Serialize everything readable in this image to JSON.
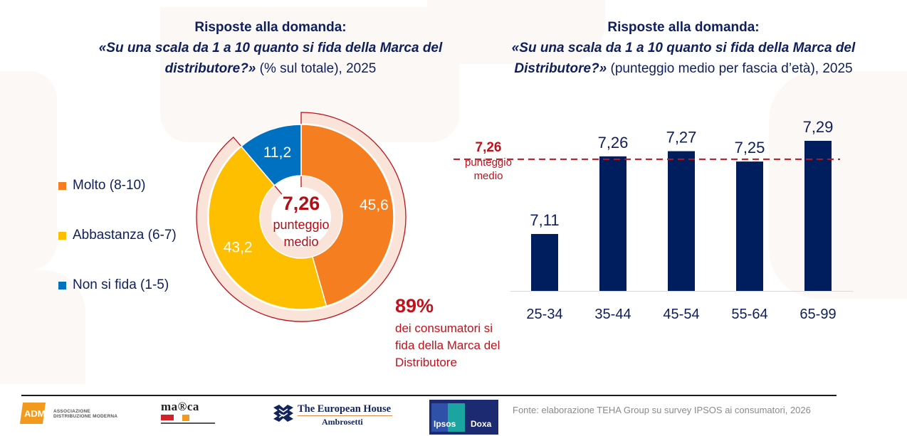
{
  "left_panel": {
    "title_line1": "Risposte alla domanda:",
    "title_question": "«Su una scala da 1 a 10 quanto si fida della Marca del distributore?»",
    "title_rest": " (% sul totale), 2025",
    "center_value": "7,26",
    "center_label_1": "punteggio",
    "center_label_2": "medio",
    "callout_value": "89%",
    "callout_text": "dei consumatori si fida della Marca del Distributore"
  },
  "right_panel": {
    "title_line1": "Risposte alla domanda:",
    "title_question": "«Su una scala da 1 a 10 quanto si fida della Marca del Distributore?»",
    "title_rest": " (punteggio medio per fascia d’età), 2025",
    "avg_value": "7,26",
    "avg_label_1": "punteggio",
    "avg_label_2": "medio"
  },
  "footer": {
    "source": "Fonte: elaborazione TEHA Group su survey IPSOS ai consumatori, 2026",
    "logos": {
      "adm": "ADM",
      "adm_sub_1": "ASSOCIAZIONE",
      "adm_sub_2": "DISTRIBUZIONE MODERNA",
      "marca": "ma®ca",
      "teha_1": "The European House",
      "teha_2": "Ambrosetti",
      "ipsos": "Ipsos",
      "doxa": "Doxa"
    }
  },
  "chart_data": [
    {
      "type": "pie",
      "variant": "donut",
      "title": "Risposte alla domanda: «Su una scala da 1 a 10 quanto si fida della Marca del distributore?» (% sul totale), 2025",
      "categories": [
        "Molto (8-10)",
        "Abbastanza (6-7)",
        "Non si fida (1-5)"
      ],
      "values": [
        45.6,
        43.2,
        11.2
      ],
      "value_labels": [
        "45,6",
        "43,2",
        "11,2"
      ],
      "colors": [
        "#f47e20",
        "#fdbf00",
        "#0070c0"
      ],
      "legend": "left",
      "center_text": "7,26 punteggio medio",
      "highlight_arc": {
        "categories": [
          "Molto (8-10)",
          "Abbastanza (6-7)"
        ],
        "total_percent": 89,
        "color": "#c0121b"
      }
    },
    {
      "type": "bar",
      "title": "Risposte alla domanda: «Su una scala da 1 a 10 quanto si fida della Marca del Distributore?» (punteggio medio per fascia d’età), 2025",
      "categories": [
        "25-34",
        "35-44",
        "45-54",
        "55-64",
        "65-99"
      ],
      "values": [
        7.11,
        7.26,
        7.27,
        7.25,
        7.29
      ],
      "value_labels": [
        "7,11",
        "7,26",
        "7,27",
        "7,25",
        "7,29"
      ],
      "bar_color": "#001e5e",
      "reference_line": {
        "value": 7.26,
        "label": "7,26 punteggio medio",
        "style": "dashed",
        "color": "#c0121b"
      },
      "xlabel": "",
      "ylabel": "",
      "ylim": [
        7.0,
        7.3
      ],
      "grid": false
    }
  ]
}
